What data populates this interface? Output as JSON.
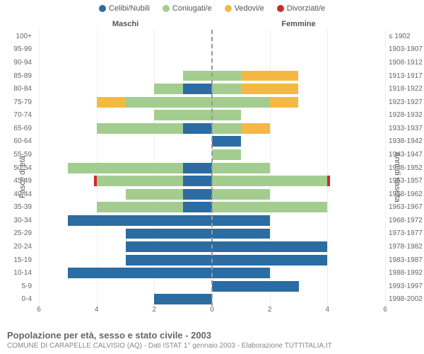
{
  "chart": {
    "type": "population-pyramid-stacked",
    "xmax": 6,
    "xticks": [
      6,
      4,
      2,
      0,
      2,
      4,
      6
    ],
    "background_color": "#ffffff",
    "grid_color": "#eeeeee",
    "legend": [
      {
        "label": "Celibi/Nubili",
        "color": "#2b6ca3"
      },
      {
        "label": "Coniugati/e",
        "color": "#a3cd8f"
      },
      {
        "label": "Vedovi/e",
        "color": "#f4b942"
      },
      {
        "label": "Divorziati/e",
        "color": "#cc2a2a"
      }
    ],
    "gender_left": "Maschi",
    "gender_right": "Femmine",
    "y_left_title": "Fasce di età",
    "y_right_title": "Anni di nascita",
    "rows": [
      {
        "age": "100+",
        "birth": "≤ 1902",
        "m": [
          0,
          0,
          0,
          0
        ],
        "f": [
          0,
          0,
          0,
          0
        ]
      },
      {
        "age": "95-99",
        "birth": "1903-1907",
        "m": [
          0,
          0,
          0,
          0
        ],
        "f": [
          0,
          0,
          0,
          0
        ]
      },
      {
        "age": "90-94",
        "birth": "1908-1912",
        "m": [
          0,
          0,
          0,
          0
        ],
        "f": [
          0,
          0,
          0,
          0
        ]
      },
      {
        "age": "85-89",
        "birth": "1913-1917",
        "m": [
          0,
          1.0,
          0,
          0
        ],
        "f": [
          0,
          1.0,
          2.0,
          0
        ]
      },
      {
        "age": "80-84",
        "birth": "1918-1922",
        "m": [
          1.0,
          1.0,
          0,
          0
        ],
        "f": [
          0,
          1.0,
          2.0,
          0
        ]
      },
      {
        "age": "75-79",
        "birth": "1923-1927",
        "m": [
          0,
          3.0,
          1.0,
          0
        ],
        "f": [
          0,
          2.0,
          1.0,
          0
        ]
      },
      {
        "age": "70-74",
        "birth": "1928-1932",
        "m": [
          0,
          2.0,
          0,
          0
        ],
        "f": [
          0,
          1.0,
          0,
          0
        ]
      },
      {
        "age": "65-69",
        "birth": "1933-1937",
        "m": [
          1.0,
          3.0,
          0,
          0
        ],
        "f": [
          0,
          1.0,
          1.0,
          0
        ]
      },
      {
        "age": "60-64",
        "birth": "1938-1942",
        "m": [
          0,
          0,
          0,
          0
        ],
        "f": [
          1.0,
          0,
          0,
          0
        ]
      },
      {
        "age": "55-59",
        "birth": "1943-1947",
        "m": [
          0,
          0,
          0,
          0
        ],
        "f": [
          0,
          1.0,
          0,
          0
        ]
      },
      {
        "age": "50-54",
        "birth": "1948-1952",
        "m": [
          1.0,
          4.0,
          0,
          0
        ],
        "f": [
          0,
          2.0,
          0,
          0
        ]
      },
      {
        "age": "45-49",
        "birth": "1953-1957",
        "m": [
          1.0,
          3.0,
          0,
          0.1
        ],
        "f": [
          0,
          4.0,
          0,
          0.1
        ]
      },
      {
        "age": "40-44",
        "birth": "1958-1962",
        "m": [
          1.0,
          2.0,
          0,
          0
        ],
        "f": [
          0,
          2.0,
          0,
          0
        ]
      },
      {
        "age": "35-39",
        "birth": "1963-1967",
        "m": [
          1.0,
          3.0,
          0,
          0
        ],
        "f": [
          0,
          4.0,
          0,
          0
        ]
      },
      {
        "age": "30-34",
        "birth": "1968-1972",
        "m": [
          5.0,
          0,
          0,
          0
        ],
        "f": [
          2.0,
          0,
          0,
          0
        ]
      },
      {
        "age": "25-29",
        "birth": "1973-1977",
        "m": [
          3.0,
          0,
          0,
          0
        ],
        "f": [
          2.0,
          0,
          0,
          0
        ]
      },
      {
        "age": "20-24",
        "birth": "1978-1982",
        "m": [
          3.0,
          0,
          0,
          0
        ],
        "f": [
          4.0,
          0,
          0,
          0
        ]
      },
      {
        "age": "15-19",
        "birth": "1983-1987",
        "m": [
          3.0,
          0,
          0,
          0
        ],
        "f": [
          4.0,
          0,
          0,
          0
        ]
      },
      {
        "age": "10-14",
        "birth": "1988-1992",
        "m": [
          5.0,
          0,
          0,
          0
        ],
        "f": [
          2.0,
          0,
          0,
          0
        ]
      },
      {
        "age": "5-9",
        "birth": "1993-1997",
        "m": [
          0,
          0,
          0,
          0
        ],
        "f": [
          3.0,
          0,
          0,
          0
        ]
      },
      {
        "age": "0-4",
        "birth": "1998-2002",
        "m": [
          2.0,
          0,
          0,
          0
        ],
        "f": [
          0,
          0,
          0,
          0
        ]
      }
    ],
    "title": "Popolazione per età, sesso e stato civile - 2003",
    "subtitle": "COMUNE DI CARAPELLE CALVISIO (AQ) - Dati ISTAT 1° gennaio 2003 - Elaborazione TUTTITALIA.IT"
  }
}
